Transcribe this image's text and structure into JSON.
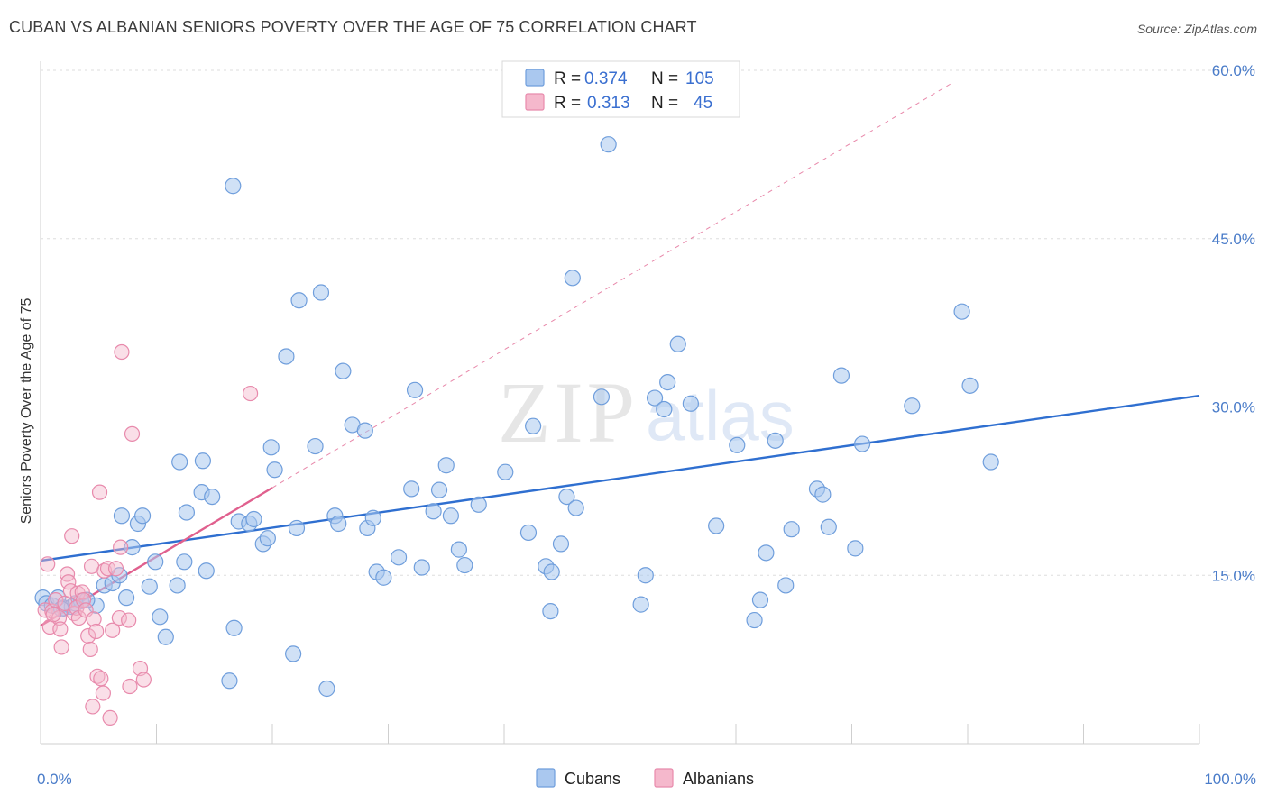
{
  "header": {
    "title": "CUBAN VS ALBANIAN SENIORS POVERTY OVER THE AGE OF 75 CORRELATION CHART",
    "source": "Source: ZipAtlas.com"
  },
  "watermark": {
    "zip": "ZIP",
    "atlas": "atlas"
  },
  "legend": {
    "rows": [
      {
        "r_label": "R =",
        "r_value": "0.374",
        "n_label": "N =",
        "n_value": "105"
      },
      {
        "r_label": "R =",
        "r_value": "0.313",
        "n_label": "N =",
        "n_value": "45"
      }
    ]
  },
  "bottom_legend": [
    "Cubans",
    "Albanians"
  ],
  "colors": {
    "cubans_fill": "#aac8ef",
    "cubans_stroke": "#6f9edc",
    "cubans_line": "#2f6fd0",
    "albanians_fill": "#f5b8cc",
    "albanians_stroke": "#e88aac",
    "albanians_line": "#e0608e",
    "grid": "#dddddd",
    "axis_label": "#4a7cc9"
  },
  "chart_data": {
    "type": "scatter",
    "title": "CUBAN VS ALBANIAN SENIORS POVERTY OVER THE AGE OF 75 CORRELATION CHART",
    "xlabel": "",
    "ylabel": "Seniors Poverty Over the Age of 75",
    "xlim": [
      0,
      100
    ],
    "ylim": [
      0,
      60
    ],
    "x_tick_labels": [
      "0.0%",
      "100.0%"
    ],
    "y_ticks": [
      15,
      30,
      45,
      60
    ],
    "y_tick_labels": [
      "15.0%",
      "30.0%",
      "45.0%",
      "60.0%"
    ],
    "grid": true,
    "legend_position": "top-center",
    "series": [
      {
        "name": "Cubans",
        "r": 0.374,
        "n": 105,
        "trend": {
          "x": [
            0,
            100
          ],
          "y": [
            16.3,
            31.0
          ]
        },
        "points": [
          [
            0.2,
            13.0
          ],
          [
            0.5,
            12.5
          ],
          [
            1.0,
            12.3
          ],
          [
            1.5,
            13.0
          ],
          [
            2.0,
            12.1
          ],
          [
            2.7,
            12.2
          ],
          [
            3.5,
            12.7
          ],
          [
            4.8,
            12.3
          ],
          [
            5.5,
            14.1
          ],
          [
            6.2,
            14.3
          ],
          [
            6.8,
            15.0
          ],
          [
            7.4,
            13.0
          ],
          [
            7.0,
            20.3
          ],
          [
            7.9,
            17.5
          ],
          [
            8.4,
            19.6
          ],
          [
            8.8,
            20.3
          ],
          [
            9.4,
            14.0
          ],
          [
            9.9,
            16.2
          ],
          [
            10.3,
            11.3
          ],
          [
            10.8,
            9.5
          ],
          [
            11.8,
            14.1
          ],
          [
            12.4,
            16.2
          ],
          [
            12.6,
            20.6
          ],
          [
            13.9,
            22.4
          ],
          [
            14.3,
            15.4
          ],
          [
            14.8,
            22.0
          ],
          [
            12.0,
            25.1
          ],
          [
            14.0,
            25.2
          ],
          [
            16.3,
            5.6
          ],
          [
            16.7,
            10.3
          ],
          [
            16.6,
            49.7
          ],
          [
            17.1,
            19.8
          ],
          [
            18.0,
            19.6
          ],
          [
            18.4,
            20.0
          ],
          [
            19.2,
            17.8
          ],
          [
            19.6,
            18.3
          ],
          [
            19.9,
            26.4
          ],
          [
            20.2,
            24.4
          ],
          [
            21.2,
            34.5
          ],
          [
            21.8,
            8.0
          ],
          [
            22.1,
            19.2
          ],
          [
            22.3,
            39.5
          ],
          [
            23.7,
            26.5
          ],
          [
            24.2,
            40.2
          ],
          [
            24.7,
            4.9
          ],
          [
            25.4,
            20.3
          ],
          [
            25.7,
            19.6
          ],
          [
            26.1,
            33.2
          ],
          [
            26.9,
            28.4
          ],
          [
            28.2,
            19.2
          ],
          [
            28.7,
            20.1
          ],
          [
            28.0,
            27.9
          ],
          [
            29.0,
            15.3
          ],
          [
            29.6,
            14.8
          ],
          [
            30.9,
            16.6
          ],
          [
            32.0,
            22.7
          ],
          [
            32.3,
            31.5
          ],
          [
            32.9,
            15.7
          ],
          [
            33.9,
            20.7
          ],
          [
            34.4,
            22.6
          ],
          [
            35.0,
            24.8
          ],
          [
            35.4,
            20.3
          ],
          [
            36.1,
            17.3
          ],
          [
            36.6,
            15.9
          ],
          [
            37.8,
            21.3
          ],
          [
            40.1,
            24.2
          ],
          [
            42.1,
            18.8
          ],
          [
            42.5,
            28.3
          ],
          [
            43.6,
            15.8
          ],
          [
            44.1,
            15.3
          ],
          [
            44.0,
            11.8
          ],
          [
            44.9,
            17.8
          ],
          [
            45.4,
            22.0
          ],
          [
            46.2,
            21.0
          ],
          [
            45.9,
            41.5
          ],
          [
            48.4,
            30.9
          ],
          [
            49.0,
            53.4
          ],
          [
            51.8,
            12.4
          ],
          [
            52.2,
            15.0
          ],
          [
            53.0,
            30.8
          ],
          [
            53.8,
            29.8
          ],
          [
            54.1,
            32.2
          ],
          [
            55.0,
            35.6
          ],
          [
            56.1,
            30.3
          ],
          [
            58.3,
            19.4
          ],
          [
            60.1,
            26.6
          ],
          [
            61.6,
            11.0
          ],
          [
            62.1,
            12.8
          ],
          [
            62.6,
            17.0
          ],
          [
            63.4,
            27.0
          ],
          [
            64.3,
            14.1
          ],
          [
            64.8,
            19.1
          ],
          [
            67.0,
            22.7
          ],
          [
            67.5,
            22.2
          ],
          [
            68.0,
            19.3
          ],
          [
            69.1,
            32.8
          ],
          [
            70.3,
            17.4
          ],
          [
            70.9,
            26.7
          ],
          [
            75.2,
            30.1
          ],
          [
            79.5,
            38.5
          ],
          [
            80.2,
            31.9
          ],
          [
            82.0,
            25.1
          ],
          [
            1.8,
            12.0
          ],
          [
            3.0,
            12.5
          ],
          [
            4.0,
            12.8
          ]
        ]
      },
      {
        "name": "Albanians",
        "r": 0.313,
        "n": 45,
        "trend": {
          "x": [
            0,
            20
          ],
          "y": [
            10.5,
            22.8
          ]
        },
        "points": [
          [
            0.4,
            11.9
          ],
          [
            0.6,
            16.0
          ],
          [
            0.8,
            10.4
          ],
          [
            1.0,
            11.8
          ],
          [
            1.3,
            12.8
          ],
          [
            1.6,
            11.2
          ],
          [
            1.7,
            10.2
          ],
          [
            1.8,
            8.6
          ],
          [
            2.1,
            12.5
          ],
          [
            2.3,
            15.1
          ],
          [
            2.4,
            14.4
          ],
          [
            2.6,
            13.6
          ],
          [
            2.7,
            18.5
          ],
          [
            2.9,
            11.6
          ],
          [
            3.1,
            12.1
          ],
          [
            3.2,
            13.4
          ],
          [
            3.3,
            11.2
          ],
          [
            3.6,
            13.5
          ],
          [
            3.7,
            12.8
          ],
          [
            3.9,
            11.9
          ],
          [
            4.1,
            9.6
          ],
          [
            4.3,
            8.4
          ],
          [
            4.4,
            15.8
          ],
          [
            4.5,
            3.3
          ],
          [
            4.6,
            11.1
          ],
          [
            4.8,
            10.0
          ],
          [
            4.9,
            6.0
          ],
          [
            5.1,
            22.4
          ],
          [
            5.2,
            5.8
          ],
          [
            5.4,
            4.5
          ],
          [
            5.5,
            15.4
          ],
          [
            5.8,
            15.6
          ],
          [
            6.0,
            2.3
          ],
          [
            6.2,
            10.1
          ],
          [
            6.5,
            15.6
          ],
          [
            6.8,
            11.2
          ],
          [
            6.9,
            17.5
          ],
          [
            7.0,
            34.9
          ],
          [
            7.6,
            11.0
          ],
          [
            7.7,
            5.1
          ],
          [
            7.9,
            27.6
          ],
          [
            8.6,
            6.7
          ],
          [
            8.9,
            5.7
          ],
          [
            18.1,
            31.2
          ],
          [
            1.1,
            11.5
          ]
        ]
      }
    ]
  }
}
